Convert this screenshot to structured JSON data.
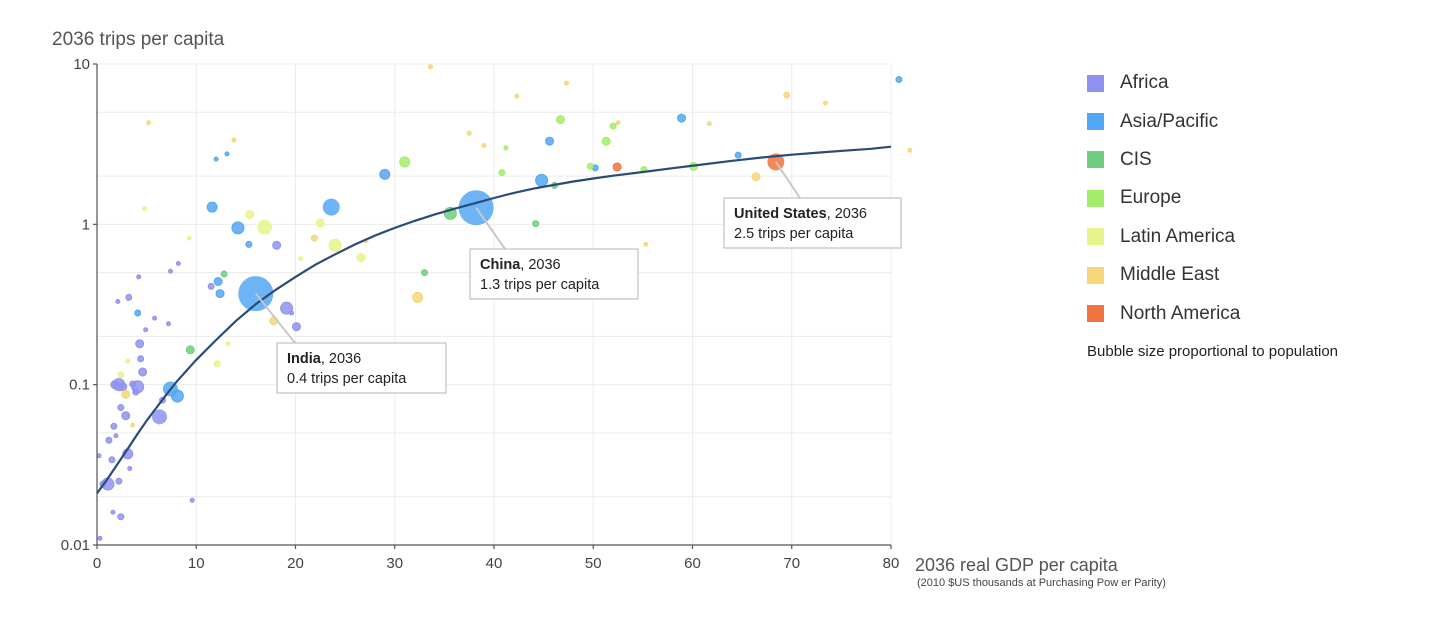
{
  "chart_data": {
    "type": "scatter",
    "title": "",
    "ylabel": "2036 trips per capita",
    "xlabel": "2036 real GDP per capita",
    "xlabel_sub": "(2010 $US thousands at Purchasing Pow er Parity)",
    "xlim": [
      0,
      80
    ],
    "ylim": [
      0.01,
      10
    ],
    "y_scale": "log",
    "x_ticks": [
      "0",
      "10",
      "20",
      "30",
      "40",
      "50",
      "60",
      "70",
      "80"
    ],
    "y_ticks": [
      "0.01",
      "0.1",
      "1",
      "10"
    ],
    "grid": true,
    "legend_position": "right",
    "bubble_note": "Bubble size proportional to population",
    "series": [
      {
        "name": "Africa",
        "color": "#8f93ef",
        "points": [
          [
            0.3,
            0.011,
            2
          ],
          [
            0.2,
            0.036,
            2
          ],
          [
            0.6,
            0.024,
            3
          ],
          [
            1.1,
            0.024,
            6
          ],
          [
            1.2,
            0.045,
            3
          ],
          [
            1.5,
            0.034,
            3
          ],
          [
            1.7,
            0.055,
            3
          ],
          [
            1.9,
            0.048,
            2
          ],
          [
            1.8,
            0.1,
            4
          ],
          [
            2.2,
            0.1,
            6
          ],
          [
            2.4,
            0.072,
            3
          ],
          [
            2.6,
            0.097,
            4
          ],
          [
            2.9,
            0.064,
            4
          ],
          [
            3.1,
            0.037,
            5
          ],
          [
            3.3,
            0.03,
            2
          ],
          [
            3.6,
            0.101,
            3
          ],
          [
            4.1,
            0.097,
            6
          ],
          [
            4.3,
            0.18,
            4
          ],
          [
            4.4,
            0.145,
            3
          ],
          [
            4.6,
            0.12,
            4
          ],
          [
            4.9,
            0.22,
            2
          ],
          [
            2.2,
            0.025,
            3
          ],
          [
            2.4,
            0.015,
            3
          ],
          [
            3.9,
            0.09,
            3
          ],
          [
            5.8,
            0.26,
            2
          ],
          [
            6.3,
            0.063,
            8
          ],
          [
            6.6,
            0.08,
            3
          ],
          [
            7.2,
            0.24,
            2
          ],
          [
            8.2,
            0.57,
            2
          ],
          [
            9.6,
            0.019,
            2
          ],
          [
            3.2,
            0.35,
            3
          ],
          [
            2.1,
            0.33,
            2
          ],
          [
            1.6,
            0.016,
            2
          ],
          [
            4.2,
            0.47,
            2
          ],
          [
            11.5,
            0.41,
            3
          ],
          [
            18.1,
            0.74,
            4
          ],
          [
            19.1,
            0.3,
            6
          ],
          [
            20.1,
            0.23,
            4
          ],
          [
            19.6,
            0.28,
            2
          ],
          [
            7.4,
            0.51,
            2
          ]
        ]
      },
      {
        "name": "Asia/Pacific",
        "color": "#52a7f4",
        "points": [
          [
            16,
            0.37,
            18
          ],
          [
            38.2,
            1.27,
            18
          ],
          [
            7.4,
            0.094,
            8
          ],
          [
            8.1,
            0.085,
            6
          ],
          [
            11.6,
            1.28,
            5
          ],
          [
            12.4,
            0.37,
            4
          ],
          [
            14.2,
            0.95,
            6
          ],
          [
            15.3,
            0.75,
            3
          ],
          [
            23.6,
            1.28,
            9
          ],
          [
            29,
            2.05,
            5
          ],
          [
            44.8,
            1.88,
            6
          ],
          [
            45.6,
            3.3,
            4
          ],
          [
            58.9,
            4.6,
            4
          ],
          [
            64.6,
            2.7,
            3
          ],
          [
            80.8,
            8.0,
            3
          ],
          [
            12.2,
            0.44,
            4
          ],
          [
            50.2,
            2.25,
            3
          ],
          [
            13.1,
            2.75,
            2
          ],
          [
            12,
            2.55,
            2
          ],
          [
            4.1,
            0.28,
            3
          ]
        ]
      },
      {
        "name": "CIS",
        "color": "#6fcf7e",
        "points": [
          [
            9.4,
            0.165,
            4
          ],
          [
            12.8,
            0.49,
            3
          ],
          [
            33,
            0.5,
            3
          ],
          [
            35.6,
            1.17,
            6
          ],
          [
            44.2,
            1.01,
            3
          ],
          [
            46.1,
            1.75,
            3
          ]
        ]
      },
      {
        "name": "Europe",
        "color": "#a2ee6a",
        "points": [
          [
            31,
            2.45,
            5
          ],
          [
            40.8,
            2.1,
            3
          ],
          [
            46.7,
            4.5,
            4
          ],
          [
            51.3,
            3.3,
            4
          ],
          [
            55.1,
            2.2,
            3
          ],
          [
            60.1,
            2.3,
            4
          ],
          [
            49.7,
            2.3,
            3
          ],
          [
            52,
            4.1,
            3
          ],
          [
            41.2,
            3.0,
            2
          ]
        ]
      },
      {
        "name": "Latin America",
        "color": "#e6f48a",
        "points": [
          [
            16.9,
            0.96,
            8
          ],
          [
            24,
            0.74,
            6
          ],
          [
            26.6,
            0.62,
            4
          ],
          [
            22.5,
            1.02,
            4
          ],
          [
            15.4,
            1.15,
            4
          ],
          [
            12.1,
            0.135,
            3
          ],
          [
            4.8,
            1.25,
            2
          ],
          [
            3.1,
            0.14,
            2
          ],
          [
            20.5,
            0.61,
            2
          ],
          [
            9.3,
            0.82,
            2
          ],
          [
            13.2,
            0.18,
            2
          ],
          [
            2.4,
            0.115,
            3
          ]
        ]
      },
      {
        "name": "Middle East",
        "color": "#f5d77a",
        "points": [
          [
            32.3,
            0.35,
            5
          ],
          [
            66.4,
            1.98,
            4
          ],
          [
            17.8,
            0.25,
            4
          ],
          [
            13.8,
            3.35,
            2
          ],
          [
            55.3,
            0.75,
            2
          ],
          [
            52.5,
            4.3,
            2
          ],
          [
            21.9,
            0.82,
            3
          ],
          [
            61.7,
            4.25,
            2
          ],
          [
            69.5,
            6.4,
            3
          ],
          [
            73.4,
            5.7,
            2
          ],
          [
            81.9,
            2.9,
            2
          ],
          [
            42.3,
            6.3,
            2
          ],
          [
            47.3,
            7.6,
            2
          ],
          [
            42.8,
            0.64,
            2
          ],
          [
            5.2,
            4.3,
            2
          ],
          [
            2.9,
            0.087,
            4
          ],
          [
            3.6,
            0.056,
            2
          ],
          [
            27.1,
            0.79,
            2
          ],
          [
            33.6,
            9.6,
            2
          ],
          [
            39,
            3.1,
            2
          ],
          [
            37.5,
            3.7,
            2
          ]
        ]
      },
      {
        "name": "North America",
        "color": "#ef7440",
        "points": [
          [
            68.4,
            2.45,
            9
          ],
          [
            52.4,
            2.28,
            4
          ]
        ]
      }
    ],
    "trend_line": [
      [
        0,
        0.021
      ],
      [
        1,
        0.0255
      ],
      [
        2,
        0.0315
      ],
      [
        3,
        0.039
      ],
      [
        4,
        0.0485
      ],
      [
        5,
        0.0595
      ],
      [
        6,
        0.072
      ],
      [
        7,
        0.087
      ],
      [
        8,
        0.104
      ],
      [
        10,
        0.143
      ],
      [
        12,
        0.19
      ],
      [
        14,
        0.25
      ],
      [
        16,
        0.318
      ],
      [
        18,
        0.39
      ],
      [
        20,
        0.47
      ],
      [
        22,
        0.56
      ],
      [
        24,
        0.65
      ],
      [
        26,
        0.75
      ],
      [
        28,
        0.85
      ],
      [
        30,
        0.95
      ],
      [
        32,
        1.05
      ],
      [
        34,
        1.15
      ],
      [
        36,
        1.25
      ],
      [
        38,
        1.35
      ],
      [
        40,
        1.46
      ],
      [
        42,
        1.57
      ],
      [
        44,
        1.67
      ],
      [
        46,
        1.76
      ],
      [
        48,
        1.85
      ],
      [
        50,
        1.93
      ],
      [
        52,
        2.01
      ],
      [
        55,
        2.12
      ],
      [
        58,
        2.24
      ],
      [
        61,
        2.36
      ],
      [
        64,
        2.49
      ],
      [
        67,
        2.61
      ],
      [
        70,
        2.72
      ],
      [
        73,
        2.81
      ],
      [
        76,
        2.9
      ],
      [
        78,
        2.96
      ],
      [
        80,
        3.05
      ]
    ],
    "annotations": [
      {
        "country": "India",
        "year": ", 2036",
        "detail": "0.4 trips per capita",
        "target": [
          16,
          0.37
        ]
      },
      {
        "country": "China",
        "year": ", 2036",
        "detail": "1.3 trips per capita",
        "target": [
          38.2,
          1.27
        ]
      },
      {
        "country": "United States",
        "year": ", 2036",
        "detail": "2.5 trips per capita",
        "target": [
          68.4,
          2.45
        ]
      }
    ]
  }
}
